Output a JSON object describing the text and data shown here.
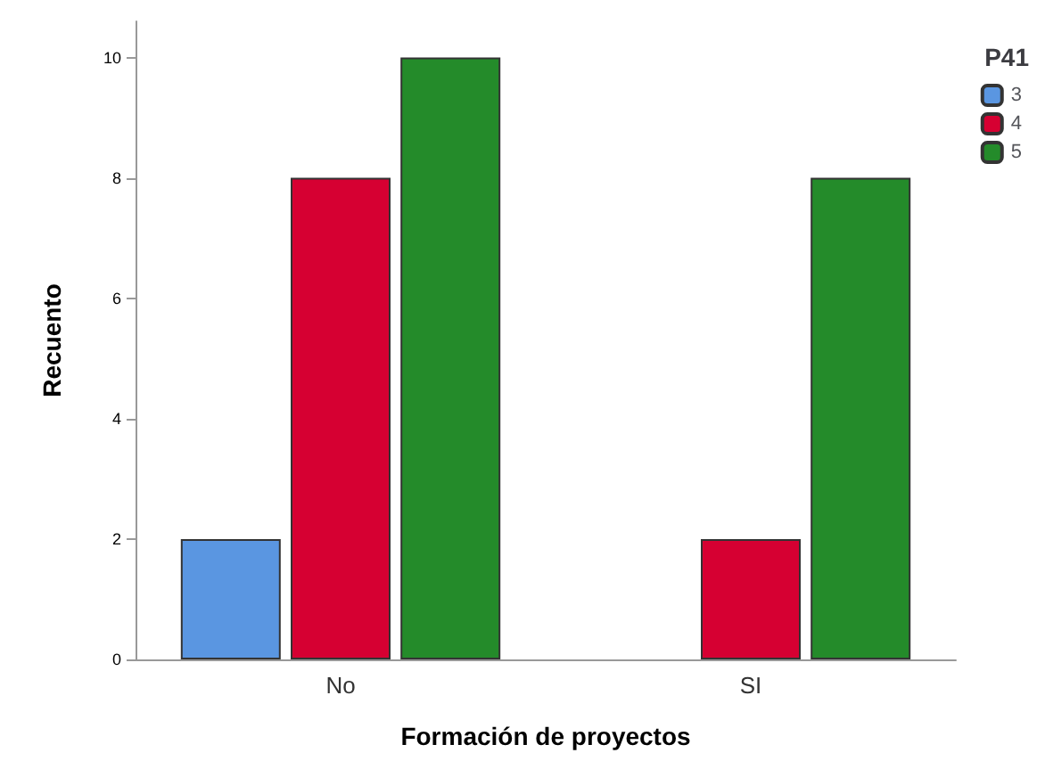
{
  "chart_data": {
    "type": "bar",
    "xlabel": "Formación de proyectos",
    "ylabel": "Recuento",
    "legend_title": "P41",
    "categories": [
      "No",
      "SI"
    ],
    "series": [
      {
        "name": "3",
        "color": "#5a96e1",
        "values": [
          2,
          null
        ]
      },
      {
        "name": "4",
        "color": "#d60032",
        "values": [
          8,
          2
        ]
      },
      {
        "name": "5",
        "color": "#248b2a",
        "values": [
          10,
          8
        ]
      }
    ],
    "ylim": [
      0,
      10.6
    ],
    "yticks": [
      0,
      2,
      4,
      6,
      8,
      10
    ],
    "grid": false,
    "legend": "top right"
  }
}
